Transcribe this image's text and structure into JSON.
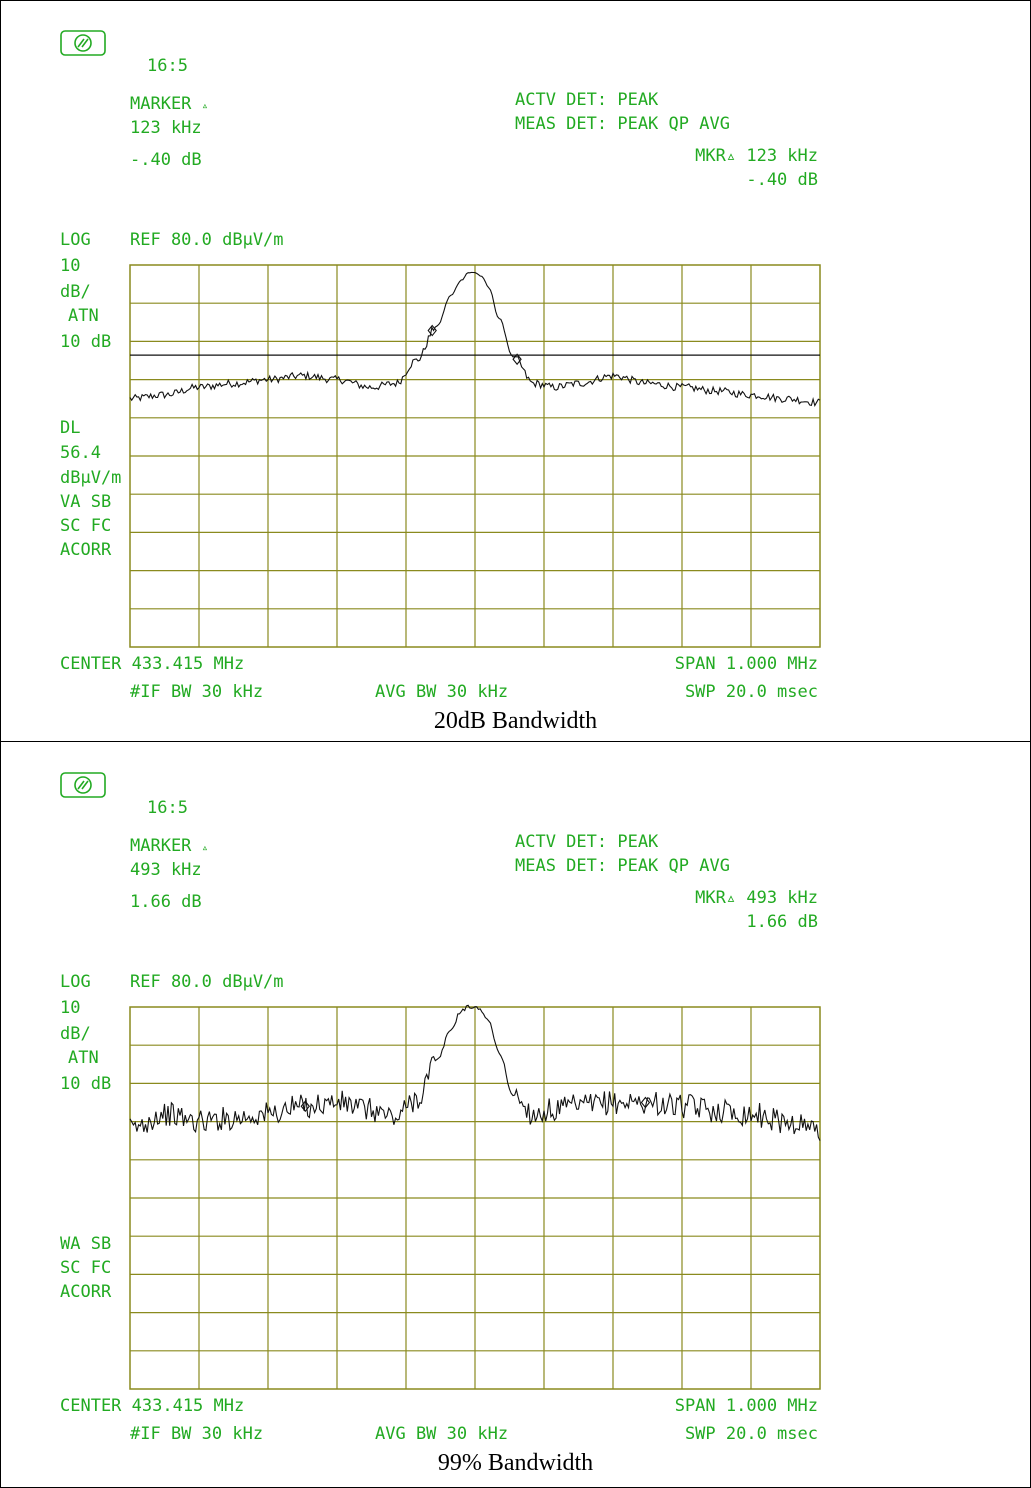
{
  "colors": {
    "instrument_text": "#22aa22",
    "grid": "#8a8a1e",
    "trace": "#111111",
    "border": "#000000"
  },
  "panels": [
    {
      "logo_icon": "hp-logo-icon",
      "time": "16:5",
      "marker_title": "MARKER",
      "marker_freq": "123 kHz",
      "marker_amp": "-.40 dB",
      "actv_det": "ACTV DET: PEAK",
      "meas_det": "MEAS DET: PEAK QP AVG",
      "mkr_freq": "MKR▵ 123 kHz",
      "mkr_amp": "-.40 dB",
      "scale_type": "LOG",
      "ref_level": "REF 80.0 dBµV/m",
      "scale_div": "10",
      "scale_unit": "dB/",
      "atn_label": "ATN",
      "atn_value": "10 dB",
      "dl_label": "DL",
      "dl_value": "56.4",
      "dl_unit": "dBµV/m",
      "mode1": "VA SB",
      "mode2": "SC FC",
      "mode3": "ACORR",
      "center": "CENTER 433.415 MHz",
      "span": "SPAN 1.000 MHz",
      "if_bw": "#IF BW 30 kHz",
      "avg_bw": "AVG BW 30 kHz",
      "swp": "SWP 20.0 msec",
      "caption": "20dB Bandwidth"
    },
    {
      "logo_icon": "hp-logo-icon",
      "time": "16:5",
      "marker_title": "MARKER",
      "marker_freq": "493 kHz",
      "marker_amp": "1.66 dB",
      "actv_det": "ACTV DET: PEAK",
      "meas_det": "MEAS DET: PEAK QP AVG",
      "mkr_freq": "MKR▵ 493 kHz",
      "mkr_amp": "1.66 dB",
      "scale_type": "LOG",
      "ref_level": "REF 80.0 dBµV/m",
      "scale_div": "10",
      "scale_unit": "dB/",
      "atn_label": "ATN",
      "atn_value": "10 dB",
      "mode1": "WA SB",
      "mode2": "SC FC",
      "mode3": "ACORR",
      "center": "CENTER 433.415 MHz",
      "span": "SPAN 1.000 MHz",
      "if_bw": "#IF BW 30 kHz",
      "avg_bw": "AVG BW 30 kHz",
      "swp": "SWP 20.0 msec",
      "caption": "99% Bandwidth"
    }
  ],
  "chart_data": [
    {
      "type": "line",
      "title": "20dB Bandwidth",
      "x_unit": "MHz",
      "y_unit": "dBµV/m",
      "center_mhz": 433.415,
      "span_mhz": 1.0,
      "xlim": [
        432.915,
        433.915
      ],
      "ylim": [
        -20,
        80
      ],
      "ref_level": 80.0,
      "scale_db_per_div": 10,
      "display_line": 56.4,
      "grid": true,
      "marker_delta": {
        "freq_khz": 123,
        "amp_db": -0.4,
        "points_mhz": [
          433.353,
          433.476
        ]
      },
      "series": [
        {
          "x": [
            432.915,
            432.965,
            433.015,
            433.065,
            433.115,
            433.165,
            433.215,
            433.265,
            433.3,
            433.33,
            433.36,
            433.38,
            433.395,
            433.405,
            433.415,
            433.425,
            433.435,
            433.45,
            433.47,
            433.5,
            433.53,
            433.565,
            433.615,
            433.665,
            433.715,
            433.765,
            433.815,
            433.865,
            433.915
          ],
          "y": [
            45,
            46,
            48,
            49,
            50,
            51,
            50,
            48,
            49,
            55,
            64,
            72,
            76,
            78,
            78,
            77,
            74,
            66,
            56,
            49,
            48,
            49,
            51,
            49,
            48,
            47,
            46,
            45,
            44
          ]
        }
      ]
    },
    {
      "type": "line",
      "title": "99% Bandwidth",
      "x_unit": "MHz",
      "y_unit": "dBµV/m",
      "center_mhz": 433.415,
      "span_mhz": 1.0,
      "xlim": [
        432.915,
        433.915
      ],
      "ylim": [
        -20,
        80
      ],
      "ref_level": 80.0,
      "scale_db_per_div": 10,
      "grid": true,
      "marker_delta": {
        "freq_khz": 493,
        "amp_db": 1.66,
        "points_mhz": [
          433.169,
          433.662
        ]
      },
      "series": [
        {
          "x": [
            432.915,
            432.965,
            433.015,
            433.065,
            433.115,
            433.165,
            433.215,
            433.265,
            433.3,
            433.33,
            433.36,
            433.38,
            433.395,
            433.405,
            433.415,
            433.425,
            433.435,
            433.45,
            433.47,
            433.5,
            433.53,
            433.565,
            433.615,
            433.665,
            433.715,
            433.765,
            433.815,
            433.865,
            433.915
          ],
          "y": [
            48,
            52,
            50,
            51,
            52,
            54,
            55,
            53,
            51,
            56,
            66,
            74,
            79,
            80,
            80,
            79,
            76,
            68,
            57,
            52,
            53,
            54,
            55,
            55,
            54,
            53,
            52,
            50,
            48
          ]
        }
      ]
    }
  ]
}
